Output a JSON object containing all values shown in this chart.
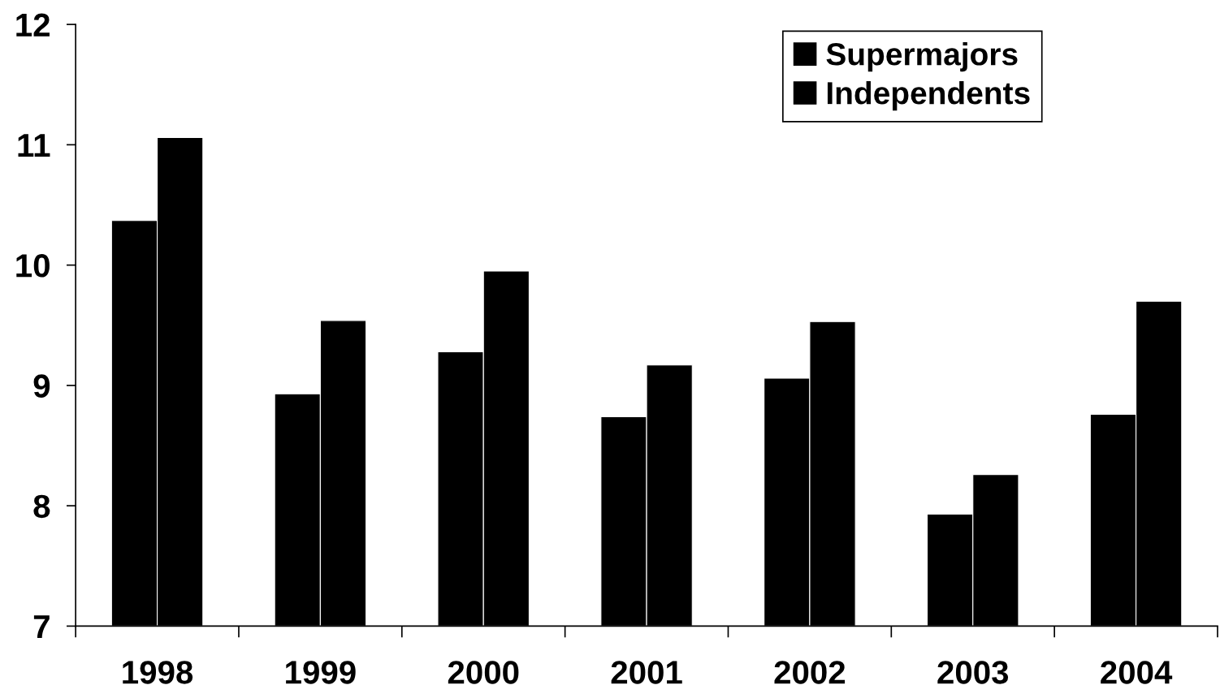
{
  "chart_data": {
    "type": "bar",
    "categories": [
      "1998",
      "1999",
      "2000",
      "2001",
      "2002",
      "2003",
      "2004"
    ],
    "series": [
      {
        "name": "Supermajors",
        "color": "#000000",
        "values": [
          10.37,
          8.93,
          9.28,
          8.74,
          9.06,
          7.93,
          8.76
        ]
      },
      {
        "name": "Independents",
        "color": "#000000",
        "values": [
          11.06,
          9.54,
          9.95,
          9.17,
          9.53,
          8.26,
          9.7
        ]
      }
    ],
    "ylim": [
      7,
      12
    ],
    "yticks": [
      7,
      8,
      9,
      10,
      11,
      12
    ],
    "legend": "top right",
    "grid": false
  }
}
